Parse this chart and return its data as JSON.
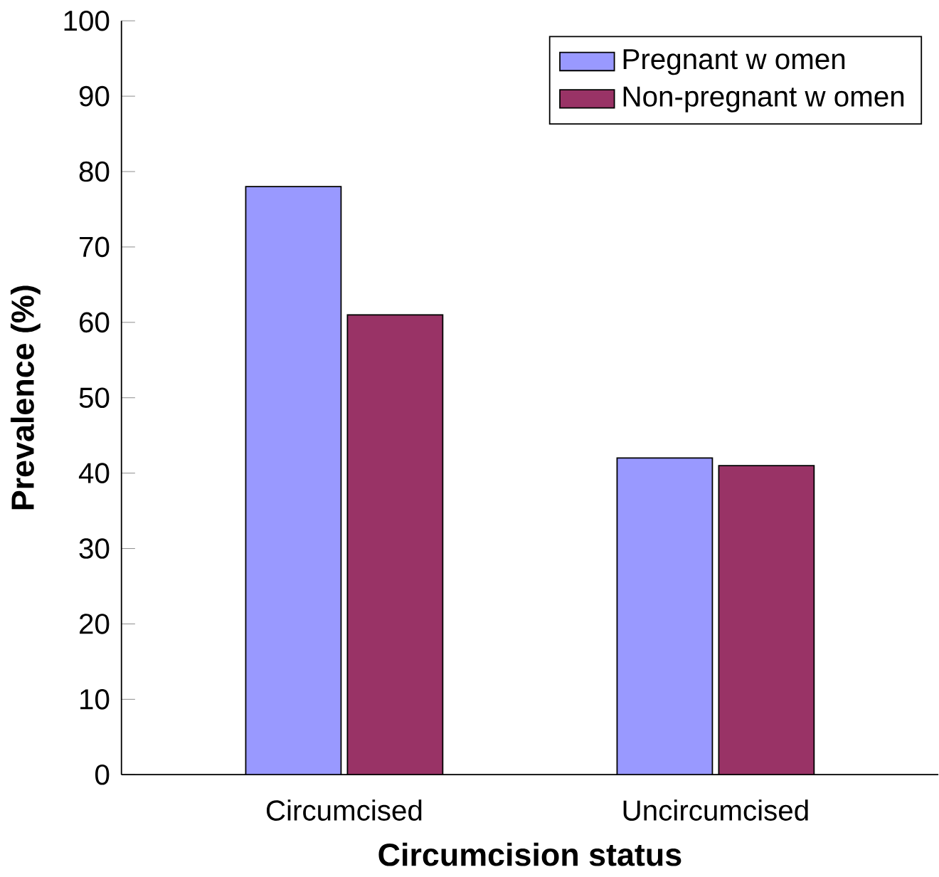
{
  "chart_data": {
    "type": "bar",
    "categories": [
      "Circumcised",
      "Uncircumcised"
    ],
    "series": [
      {
        "name": "Pregnant w omen",
        "color": "#9999ff",
        "values": [
          78,
          42
        ]
      },
      {
        "name": "Non-pregnant w omen",
        "color": "#993366",
        "values": [
          61,
          41
        ]
      }
    ],
    "xlabel": "Circumcision status",
    "ylabel": "Prevalence (%)",
    "ylim": [
      0,
      100
    ],
    "yticks": [
      0,
      10,
      20,
      30,
      40,
      50,
      60,
      70,
      80,
      90,
      100
    ],
    "legend": "top right"
  }
}
